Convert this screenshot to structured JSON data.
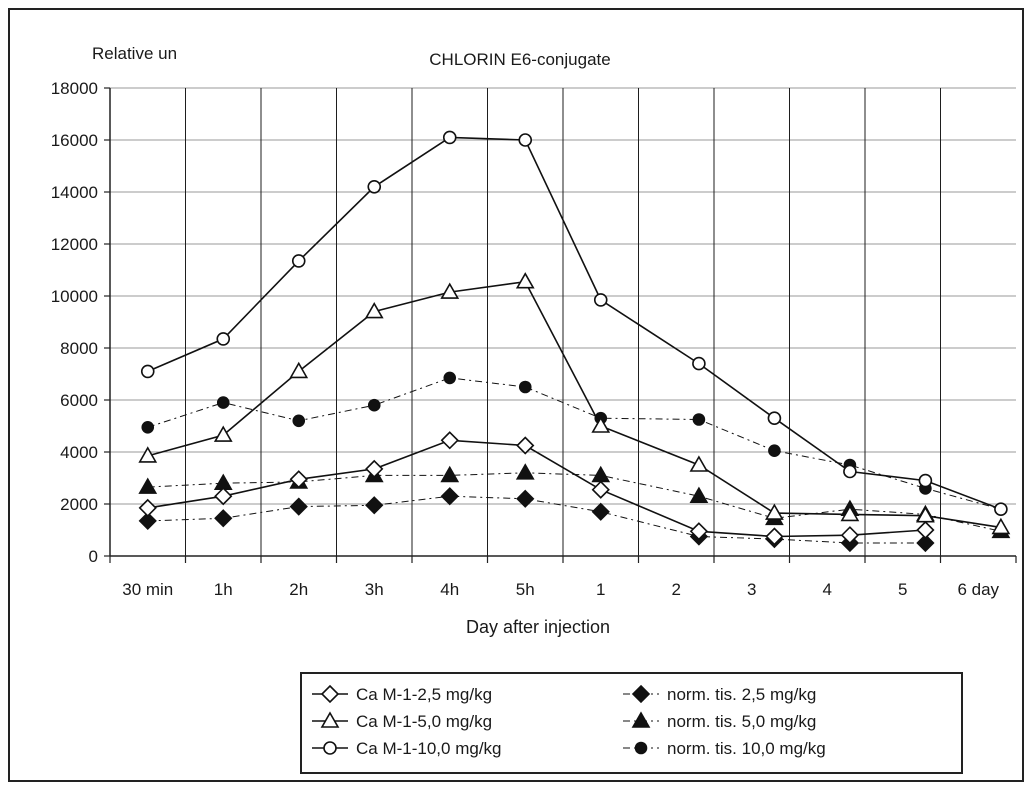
{
  "chart_data": {
    "type": "line",
    "title": "CHLORIN E6-conjugate",
    "ylabel": "Relative un",
    "xlabel": "Day after injection",
    "ylim": [
      0,
      18000
    ],
    "yticks": [
      0,
      2000,
      4000,
      6000,
      8000,
      10000,
      12000,
      14000,
      16000,
      18000
    ],
    "categories": [
      "30 min",
      "1h",
      "2h",
      "3h",
      "4h",
      "5h",
      "1",
      "2",
      "3",
      "4",
      "5",
      "6 day"
    ],
    "grid": true,
    "legend_position": "bottom",
    "series": [
      {
        "name": "Ca M-1-2,5 mg/kg",
        "marker": "diamond-open",
        "line": "solid",
        "x": [
          0,
          1,
          2,
          3,
          4,
          5,
          6,
          7.3,
          8.3,
          9.3,
          10.3
        ],
        "values": [
          1850,
          2300,
          2950,
          3350,
          4450,
          4250,
          2550,
          950,
          750,
          800,
          1000
        ]
      },
      {
        "name": "Ca M-1-5,0 mg/kg",
        "marker": "triangle-open",
        "line": "solid",
        "x": [
          0,
          1,
          2,
          3,
          4,
          5,
          6,
          7.3,
          8.3,
          9.3,
          10.3,
          11.3
        ],
        "values": [
          3850,
          4650,
          7100,
          9400,
          10150,
          10550,
          5000,
          3500,
          1650,
          1600,
          1550,
          1100
        ]
      },
      {
        "name": "Ca M-1-10,0 mg/kg",
        "marker": "circle-open",
        "line": "solid",
        "x": [
          0,
          1,
          2,
          3,
          4,
          5,
          6,
          7.3,
          8.3,
          9.3,
          10.3,
          11.3
        ],
        "values": [
          7100,
          8350,
          11350,
          14200,
          16100,
          16000,
          9850,
          7400,
          5300,
          3250,
          2900,
          1800
        ]
      },
      {
        "name": "norm. tis. 2,5 mg/kg",
        "marker": "diamond-filled",
        "line": "dashed",
        "x": [
          0,
          1,
          2,
          3,
          4,
          5,
          6,
          7.3,
          8.3,
          9.3,
          10.3
        ],
        "values": [
          1350,
          1450,
          1900,
          1950,
          2300,
          2200,
          1700,
          750,
          650,
          500,
          500
        ]
      },
      {
        "name": "norm. tis. 5,0 mg/kg",
        "marker": "triangle-filled",
        "line": "dashed",
        "x": [
          0,
          1,
          2,
          3,
          4,
          5,
          6,
          7.3,
          8.3,
          9.3,
          10.3,
          11.3
        ],
        "values": [
          2650,
          2800,
          2850,
          3100,
          3100,
          3200,
          3100,
          2300,
          1450,
          1800,
          1600,
          950
        ]
      },
      {
        "name": "norm. tis. 10,0 mg/kg",
        "marker": "circle-filled",
        "line": "dashed",
        "x": [
          0,
          1,
          2,
          3,
          4,
          5,
          6,
          7.3,
          8.3,
          9.3,
          10.3,
          11.3
        ],
        "values": [
          4950,
          5900,
          5200,
          5800,
          6850,
          6500,
          5300,
          5250,
          4050,
          3500,
          2600,
          1800
        ]
      }
    ],
    "legend_layout": [
      [
        0,
        3
      ],
      [
        1,
        4
      ],
      [
        2,
        5
      ]
    ]
  }
}
